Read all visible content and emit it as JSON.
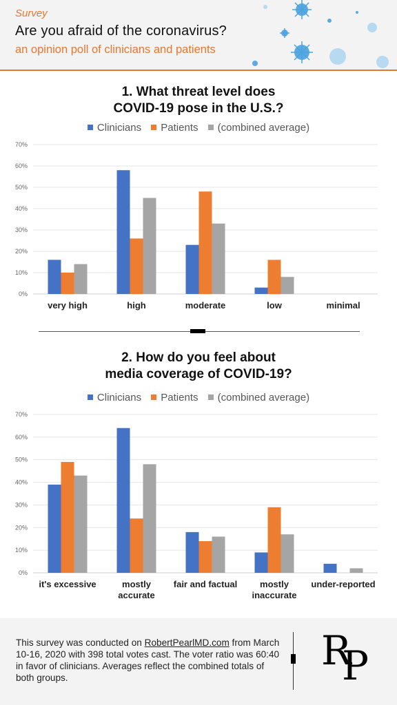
{
  "header": {
    "kicker": "Survey",
    "title": "Are you afraid of the coronavirus?",
    "subtitle": "an opinion poll of clinicians and patients"
  },
  "legend": {
    "clinicians": "Clinicians",
    "patients": "Patients",
    "combined": "(combined average)"
  },
  "colors": {
    "clinicians": "#4472c4",
    "patients": "#ed7d31",
    "combined": "#a5a5a5"
  },
  "chart_data": [
    {
      "type": "bar",
      "title_line1": "1. What threat level does",
      "title_line2": "COVID-19 pose in the U.S.?",
      "categories": [
        [
          "very high"
        ],
        [
          "high"
        ],
        [
          "moderate"
        ],
        [
          "low"
        ],
        [
          "minimal"
        ]
      ],
      "series": [
        {
          "name": "Clinicians",
          "values": [
            16,
            58,
            23,
            3,
            0
          ]
        },
        {
          "name": "Patients",
          "values": [
            10,
            26,
            48,
            16,
            0
          ]
        },
        {
          "name": "(combined average)",
          "values": [
            14,
            45,
            33,
            8,
            0
          ]
        }
      ],
      "ylim": [
        0,
        70
      ],
      "yticks": [
        "0%",
        "10%",
        "20%",
        "30%",
        "40%",
        "50%",
        "60%",
        "70%"
      ],
      "grid": true,
      "legend_position": "top"
    },
    {
      "type": "bar",
      "title_line1": "2. How do you feel about",
      "title_line2": "media coverage of COVID-19?",
      "categories": [
        [
          "it's excessive"
        ],
        [
          "mostly",
          "accurate"
        ],
        [
          "fair and factual"
        ],
        [
          "mostly",
          "inaccurate"
        ],
        [
          "under-reported"
        ]
      ],
      "series": [
        {
          "name": "Clinicians",
          "values": [
            39,
            64,
            18,
            9,
            4
          ]
        },
        {
          "name": "Patients",
          "values": [
            49,
            24,
            14,
            29,
            0
          ]
        },
        {
          "name": "(combined average)",
          "values": [
            43,
            48,
            16,
            17,
            2
          ]
        }
      ],
      "ylim": [
        0,
        70
      ],
      "yticks": [
        "0%",
        "10%",
        "20%",
        "30%",
        "40%",
        "50%",
        "60%",
        "70%"
      ],
      "grid": true,
      "legend_position": "top"
    }
  ],
  "footer": {
    "text_before": "This survey was conducted on ",
    "link": "RobertPearlMD.com",
    "text_after": " from March 10-16, 2020 with 398 total votes cast. The voter ratio was 60:40 in favor of clinicians.  Averages reflect the combined totals of both groups.",
    "logo_r": "R",
    "logo_p": "P"
  }
}
